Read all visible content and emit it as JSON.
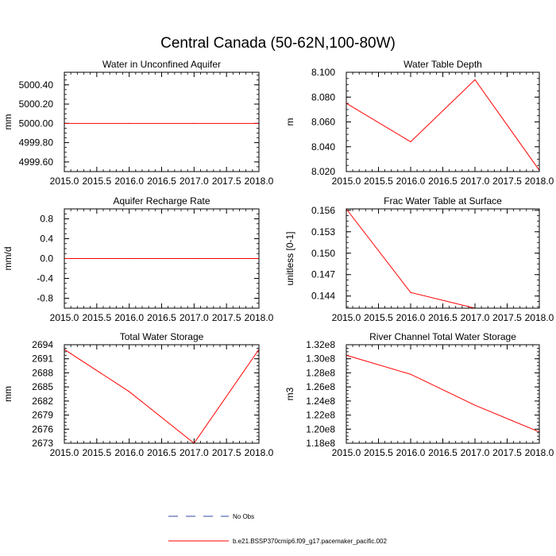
{
  "figure": {
    "title": "Central Canada (50-62N,100-80W)"
  },
  "chart_data": [
    {
      "type": "line",
      "title": "Water in Unconfined Aquifer",
      "ylabel": "mm",
      "xlim": [
        2015.0,
        2018.0
      ],
      "ylim": [
        4999.5,
        5000.53
      ],
      "xticks": [
        2015.0,
        2015.5,
        2016.0,
        2016.5,
        2017.0,
        2017.5,
        2018.0
      ],
      "xtick_labels": [
        "2015.0",
        "2015.5",
        "2016.0",
        "2016.5",
        "2017.0",
        "2017.5",
        "2018.0"
      ],
      "yticks": [
        4999.6,
        4999.8,
        5000.0,
        5000.2,
        5000.4
      ],
      "ytick_labels": [
        "4999.60",
        "4999.80",
        "5000.00",
        "5000.20",
        "5000.40"
      ],
      "x": [
        2015,
        2016,
        2017,
        2018
      ],
      "series": [
        {
          "values": [
            5000.0,
            5000.0,
            5000.0,
            5000.0
          ],
          "color": "#ff0000"
        }
      ]
    },
    {
      "type": "line",
      "title": "Water Table Depth",
      "ylabel": "m",
      "xlim": [
        2015.0,
        2018.0
      ],
      "ylim": [
        8.02,
        8.1
      ],
      "xticks": [
        2015.0,
        2015.5,
        2016.0,
        2016.5,
        2017.0,
        2017.5,
        2018.0
      ],
      "xtick_labels": [
        "2015.0",
        "2015.5",
        "2016.0",
        "2016.5",
        "2017.0",
        "2017.5",
        "2018.0"
      ],
      "yticks": [
        8.02,
        8.04,
        8.06,
        8.08,
        8.1
      ],
      "ytick_labels": [
        "8.020",
        "8.040",
        "8.060",
        "8.080",
        "8.100"
      ],
      "x": [
        2015,
        2016,
        2017,
        2018
      ],
      "series": [
        {
          "values": [
            8.075,
            8.044,
            8.094,
            8.021
          ],
          "color": "#ff0000"
        }
      ]
    },
    {
      "type": "line",
      "title": "Aquifer Recharge Rate",
      "ylabel": "mm/d",
      "xlim": [
        2015.0,
        2018.0
      ],
      "ylim": [
        -1.0,
        1.0
      ],
      "xticks": [
        2015.0,
        2015.5,
        2016.0,
        2016.5,
        2017.0,
        2017.5,
        2018.0
      ],
      "xtick_labels": [
        "2015.0",
        "2015.5",
        "2016.0",
        "2016.5",
        "2017.0",
        "2017.5",
        "2018.0"
      ],
      "yticks": [
        -0.8,
        -0.4,
        0.0,
        0.4,
        0.8
      ],
      "ytick_labels": [
        "-0.8",
        "-0.4",
        "0.0",
        "0.4",
        "0.8"
      ],
      "x": [
        2015,
        2016,
        2017,
        2018
      ],
      "series": [
        {
          "values": [
            0.0,
            0.0,
            0.0,
            0.0
          ],
          "color": "#ff0000"
        }
      ]
    },
    {
      "type": "line",
      "title": "Frac Water Table at Surface",
      "ylabel": "unitless [0-1]",
      "xlim": [
        2015.0,
        2018.0
      ],
      "ylim": [
        0.1423,
        0.1562
      ],
      "xticks": [
        2015.0,
        2015.5,
        2016.0,
        2016.5,
        2017.0,
        2017.5,
        2018.0
      ],
      "xtick_labels": [
        "2015.0",
        "2015.5",
        "2016.0",
        "2016.5",
        "2017.0",
        "2017.5",
        "2018.0"
      ],
      "yticks": [
        0.144,
        0.147,
        0.15,
        0.153,
        0.156
      ],
      "ytick_labels": [
        "0.144",
        "0.147",
        "0.150",
        "0.153",
        "0.156"
      ],
      "x": [
        2015,
        2016,
        2017,
        2018
      ],
      "series": [
        {
          "values": [
            0.1562,
            0.1445,
            0.1423,
            0.1423
          ],
          "color": "#ff0000"
        }
      ]
    },
    {
      "type": "line",
      "title": "Total Water Storage",
      "ylabel": "mm",
      "xlim": [
        2015.0,
        2018.0
      ],
      "ylim": [
        2673.0,
        2694.0
      ],
      "xticks": [
        2015.0,
        2015.5,
        2016.0,
        2016.5,
        2017.0,
        2017.5,
        2018.0
      ],
      "xtick_labels": [
        "2015.0",
        "2015.5",
        "2016.0",
        "2016.5",
        "2017.0",
        "2017.5",
        "2018.0"
      ],
      "yticks": [
        2673,
        2676,
        2679,
        2682,
        2685,
        2688,
        2691,
        2694
      ],
      "ytick_labels": [
        "2673",
        "2676",
        "2679",
        "2682",
        "2685",
        "2688",
        "2691",
        "2694"
      ],
      "x": [
        2015,
        2016,
        2017,
        2018
      ],
      "series": [
        {
          "values": [
            2693.0,
            2684.0,
            2673.0,
            2693.0
          ],
          "color": "#ff0000"
        }
      ]
    },
    {
      "type": "line",
      "title": "River Channel Total Water Storage",
      "ylabel": "m3",
      "xlim": [
        2015.0,
        2018.0
      ],
      "ylim": [
        118000000.0,
        132000000.0
      ],
      "xticks": [
        2015.0,
        2015.5,
        2016.0,
        2016.5,
        2017.0,
        2017.5,
        2018.0
      ],
      "xtick_labels": [
        "2015.0",
        "2015.5",
        "2016.0",
        "2016.5",
        "2017.0",
        "2017.5",
        "2018.0"
      ],
      "yticks": [
        118000000.0,
        120000000.0,
        122000000.0,
        124000000.0,
        126000000.0,
        128000000.0,
        130000000.0,
        132000000.0
      ],
      "ytick_labels": [
        "1.18e8",
        "1.20e8",
        "1.22e8",
        "1.24e8",
        "1.26e8",
        "1.28e8",
        "1.30e8",
        "1.32e8"
      ],
      "x": [
        2015,
        2016,
        2017,
        2018
      ],
      "series": [
        {
          "values": [
            130500000.0,
            127800000.0,
            123400000.0,
            119600000.0
          ],
          "color": "#ff0000"
        }
      ]
    }
  ],
  "legend": {
    "items": [
      {
        "label": "No Obs",
        "color": "#3344aa",
        "style": "dashed"
      },
      {
        "label": "b.e21.BSSP370cmip6.f09_g17.pacemaker_pacific.002",
        "color": "#ff0000",
        "style": "solid"
      }
    ]
  }
}
